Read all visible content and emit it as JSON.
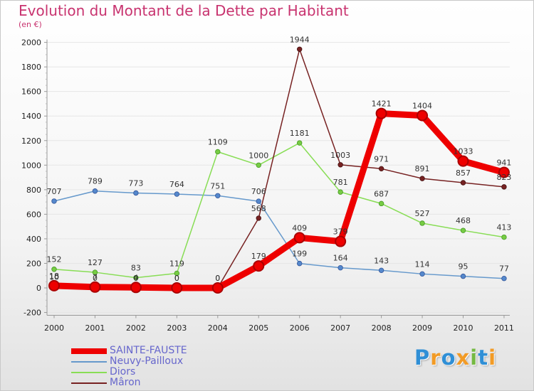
{
  "chart_data": {
    "type": "line",
    "title": "Evolution du Montant de la Dette par Habitant",
    "unit": "(en €)",
    "x": [
      "2000",
      "2001",
      "2002",
      "2003",
      "2004",
      "2005",
      "2006",
      "2007",
      "2008",
      "2009",
      "2010",
      "2011"
    ],
    "y_ticks": [
      "-200",
      "0",
      "200",
      "400",
      "600",
      "800",
      "1000",
      "1200",
      "1400",
      "1600",
      "1800",
      "2000"
    ],
    "ylim": [
      -200,
      2000
    ],
    "series": [
      {
        "name": "SAINTE-FAUSTE",
        "color": "#ee0000",
        "values": [
          18,
          7,
          4,
          0,
          0,
          179,
          409,
          379,
          1421,
          1404,
          1033,
          941
        ],
        "labels": [
          "18",
          "7",
          "4",
          "0",
          "0",
          "179",
          "409",
          "379",
          "1421",
          "1404",
          "1033",
          "941"
        ]
      },
      {
        "name": "Neuvy-Pailloux",
        "color": "#6699cc",
        "values": [
          707,
          789,
          773,
          764,
          751,
          706,
          199,
          164,
          143,
          114,
          95,
          77
        ],
        "labels": [
          "707",
          "789",
          "773",
          "764",
          "751",
          "706",
          "199",
          "164",
          "143",
          "114",
          "95",
          "77"
        ]
      },
      {
        "name": "Diors",
        "color": "#88dd55",
        "values": [
          152,
          127,
          83,
          119,
          1109,
          1000,
          1181,
          781,
          687,
          527,
          468,
          413
        ],
        "labels": [
          "152",
          "127",
          "83",
          "119",
          "1109",
          "1000",
          "1181",
          "781",
          "687",
          "527",
          "468",
          "413"
        ]
      },
      {
        "name": "Mâron",
        "color": "#772222",
        "values": [
          10,
          0,
          0,
          0,
          0,
          568,
          1944,
          1003,
          971,
          891,
          857,
          823
        ],
        "labels": [
          "10",
          "0",
          "0",
          "0",
          "0",
          "568",
          "1944",
          "1003",
          "971",
          "891",
          "857",
          "823"
        ]
      }
    ]
  },
  "brand": {
    "letters": [
      "P",
      "r",
      "o",
      "x",
      "i",
      "t",
      "i"
    ],
    "colors": [
      "#2f8fd6",
      "#f29b26",
      "#2f8fd6",
      "#f29b26",
      "#75b943",
      "#2f8fd6",
      "#f29b26"
    ]
  }
}
